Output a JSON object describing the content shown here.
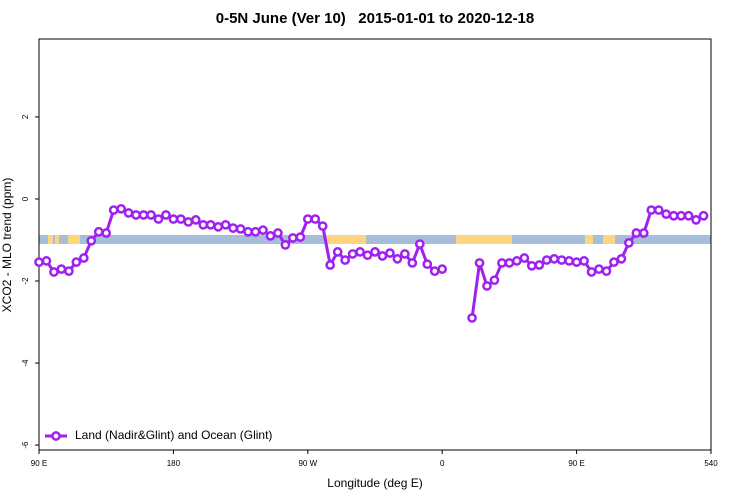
{
  "chart_data": {
    "type": "line",
    "title": "0-5N June (Ver 10)   2015-01-01 to 2020-12-18",
    "xlabel": "Longitude (deg E)",
    "ylabel": "XCO2 - MLO trend (ppm)",
    "x": [
      90,
      95,
      100,
      105,
      110,
      115,
      120,
      125,
      130,
      135,
      140,
      145,
      150,
      155,
      160,
      165,
      170,
      175,
      180,
      185,
      190,
      195,
      200,
      205,
      210,
      215,
      220,
      225,
      230,
      235,
      240,
      245,
      250,
      255,
      260,
      265,
      270,
      275,
      280,
      285,
      290,
      295,
      300,
      305,
      310,
      315,
      320,
      325,
      330,
      335,
      340,
      345,
      350,
      355,
      360,
      365,
      370,
      375,
      380,
      385,
      390,
      395,
      400,
      405,
      410,
      415,
      420,
      425,
      430,
      435,
      440,
      445,
      450,
      455,
      460,
      465,
      470,
      475,
      480,
      485,
      490,
      495,
      500,
      505,
      510,
      515,
      520,
      525,
      530,
      535
    ],
    "series": [
      {
        "name": "Land (Nadir&Glint) and Ocean (Glint)",
        "color": "#a020f0",
        "values": [
          -1.54,
          -1.51,
          -1.78,
          -1.71,
          -1.76,
          -1.54,
          -1.44,
          -1.02,
          -0.8,
          -0.83,
          -0.27,
          -0.24,
          -0.34,
          -0.39,
          -0.39,
          -0.39,
          -0.49,
          -0.39,
          -0.49,
          -0.49,
          -0.56,
          -0.51,
          -0.63,
          -0.63,
          -0.68,
          -0.63,
          -0.71,
          -0.73,
          -0.8,
          -0.8,
          -0.76,
          -0.9,
          -0.83,
          -1.12,
          -0.95,
          -0.93,
          -0.49,
          -0.49,
          -0.66,
          -1.61,
          -1.29,
          -1.49,
          -1.34,
          -1.29,
          -1.37,
          -1.29,
          -1.39,
          -1.32,
          -1.46,
          -1.34,
          -1.56,
          -1.1,
          -1.59,
          -1.76,
          -1.71,
          null,
          null,
          null,
          -2.9,
          -1.56,
          -2.12,
          -1.98,
          -1.56,
          -1.56,
          -1.51,
          -1.44,
          -1.63,
          -1.61,
          -1.49,
          -1.46,
          -1.49,
          -1.51,
          -1.54,
          -1.51,
          -1.78,
          -1.71,
          -1.76,
          -1.54,
          -1.46,
          -1.07,
          -0.83,
          -0.83,
          -0.27,
          -0.27,
          -0.37,
          -0.41,
          -0.41,
          -0.41,
          -0.51,
          -0.41
        ]
      }
    ],
    "xlim": [
      90,
      540
    ],
    "xticks": [
      {
        "value": 90,
        "label": "90 E"
      },
      180,
      {
        "value": 270,
        "label": "90 W"
      },
      {
        "value": 360,
        "label": "0"
      },
      {
        "value": 450,
        "label": "90 E"
      },
      540
    ],
    "ylim": [
      -6.12,
      3.9
    ],
    "yticks": [
      -6,
      -4,
      -2,
      0,
      2
    ],
    "legend": "bottomleft"
  }
}
